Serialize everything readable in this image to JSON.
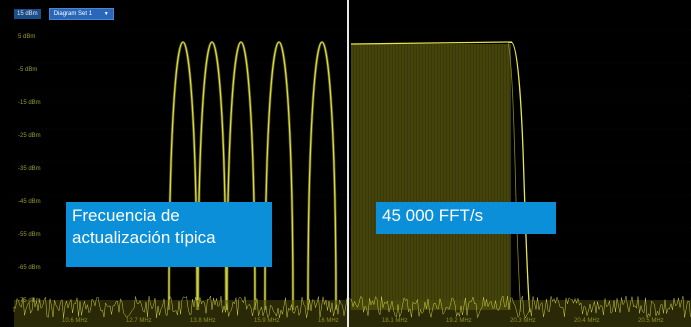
{
  "top_bar": {
    "ref_level": "15 dBm",
    "diagram_select": {
      "value": "Diagram Set 1",
      "icon": "chevron-down-icon"
    }
  },
  "y_axis_labels": [
    "5 dBm",
    "-5 dBm",
    "-15 dBm",
    "-25 dBm",
    "-35 dBm",
    "-45 dBm",
    "-55 dBm",
    "-65 dBm",
    "-75 dBm"
  ],
  "x_axis_labels": [
    "10.6 MHz",
    "12.7 MHz",
    "13.8 MHz",
    "15.9 MHz",
    "16 MHz",
    "18.1 MHz",
    "19.2 MHz",
    "20.3 MHz",
    "20.4 MHz",
    "20.5 MHz"
  ],
  "captions": {
    "left": "Frecuencia de actualización típica",
    "right": "45 000 FFT/s"
  },
  "colors": {
    "background": "#000000",
    "trace": "#e6e64a",
    "trace_dim": "#8a8a1c",
    "caption_bg": "#0a8fd8",
    "divider": "#e8e8e8",
    "select_bg": "#2a67b8"
  }
}
